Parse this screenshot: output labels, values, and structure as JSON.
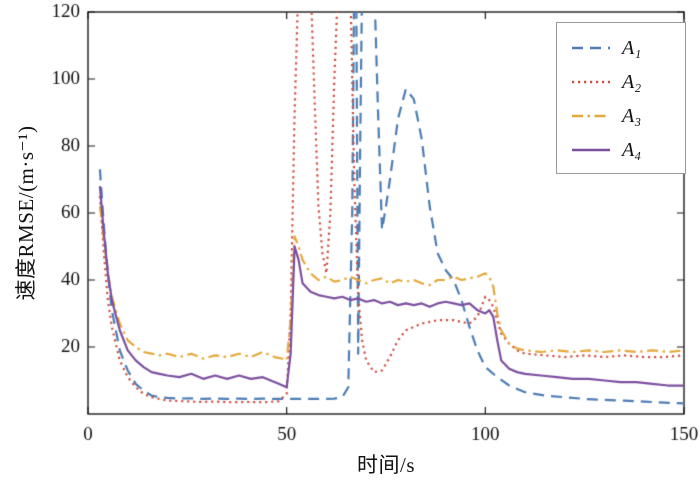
{
  "chart_data": {
    "type": "line",
    "title": "",
    "xlabel": "时间/s",
    "ylabel": "速度RMSE/(m·s⁻¹)",
    "xlim": [
      0,
      150
    ],
    "ylim": [
      0,
      120
    ],
    "xticks": [
      0,
      50,
      100,
      150
    ],
    "yticks": [
      20,
      40,
      60,
      80,
      100,
      120
    ],
    "grid": false,
    "legend_position": "top-right",
    "axis_color": "#1a1a1a",
    "series": [
      {
        "name": "A₁",
        "color": "#4d7db3",
        "style": "dashed",
        "x": [
          3,
          4,
          5,
          6,
          8,
          10,
          12,
          14,
          16,
          18,
          20,
          23,
          26,
          29,
          32,
          35,
          38,
          41,
          44,
          47,
          50,
          53,
          56,
          59,
          62,
          64,
          65.5,
          66.5,
          67,
          67.5,
          68,
          68.5,
          69,
          69.5,
          70,
          71,
          72,
          73,
          74,
          75,
          76,
          78,
          80,
          82,
          84,
          86,
          88,
          90,
          92,
          94,
          96,
          98,
          100,
          103,
          106,
          110,
          115,
          120,
          125,
          130,
          135,
          140,
          145,
          150
        ],
        "y": [
          73,
          56,
          42,
          31,
          19,
          13,
          9,
          7,
          5.5,
          5,
          4.8,
          4.6,
          4.7,
          4.5,
          4.6,
          4.5,
          4.6,
          4.5,
          4.6,
          4.5,
          4.5,
          4.5,
          4.5,
          4.5,
          4.6,
          5,
          8,
          60,
          130,
          130,
          18,
          80,
          130,
          130,
          130,
          130,
          130,
          90,
          55,
          62,
          70,
          88,
          97,
          94,
          82,
          62,
          48,
          43,
          40,
          34,
          26,
          19,
          14,
          11,
          8.5,
          6.5,
          5.5,
          5,
          4.5,
          4.2,
          4,
          3.7,
          3.4,
          3.2
        ]
      },
      {
        "name": "A₂",
        "color": "#cd5246",
        "style": "dotted",
        "x": [
          3,
          4,
          5,
          6,
          8,
          10,
          12,
          14,
          16,
          18,
          20,
          24,
          28,
          32,
          36,
          40,
          44,
          48,
          50,
          51,
          52,
          53,
          56,
          57,
          58,
          59,
          60,
          61,
          62,
          63,
          66,
          67,
          68,
          69,
          70,
          72,
          74,
          76,
          78,
          80,
          82,
          84,
          86,
          88,
          90,
          92,
          94,
          96,
          98,
          100,
          101,
          102,
          103,
          104,
          106,
          108,
          110,
          115,
          120,
          125,
          130,
          135,
          140,
          145,
          150
        ],
        "y": [
          65,
          48,
          34,
          26,
          16,
          11,
          8,
          6,
          5,
          4.5,
          4,
          3.8,
          3.6,
          3.7,
          3.5,
          3.6,
          3.5,
          3.8,
          6,
          30,
          90,
          130,
          130,
          95,
          62,
          48,
          42,
          60,
          100,
          130,
          130,
          70,
          35,
          22,
          16,
          12.5,
          13,
          17,
          22,
          25,
          26,
          27,
          27.5,
          28,
          28,
          28,
          27.5,
          27,
          29,
          35,
          34,
          32,
          28,
          24,
          21,
          19,
          18,
          17.5,
          17,
          17.5,
          17,
          17.5,
          17,
          17,
          17.5
        ]
      },
      {
        "name": "A₃",
        "color": "#e4a83c",
        "style": "dashdot",
        "x": [
          3,
          4,
          5,
          6,
          8,
          10,
          12,
          14,
          16,
          18,
          20,
          23,
          26,
          29,
          32,
          35,
          38,
          41,
          44,
          47,
          49,
          50,
          51,
          52,
          53,
          54,
          56,
          58,
          60,
          62,
          64,
          66,
          68,
          70,
          72,
          74,
          76,
          78,
          80,
          82,
          84,
          86,
          88,
          90,
          92,
          94,
          96,
          98,
          100,
          101,
          102,
          103,
          104,
          106,
          108,
          110,
          114,
          118,
          122,
          126,
          130,
          134,
          138,
          142,
          146,
          150
        ],
        "y": [
          62,
          52,
          42,
          35,
          27,
          22,
          20,
          18.5,
          18,
          17.5,
          18,
          17,
          18,
          16.5,
          17.5,
          17,
          18,
          17,
          18.5,
          17,
          16.5,
          16,
          28,
          53,
          50,
          46,
          42,
          40,
          41,
          39.5,
          40,
          41,
          40,
          39,
          40,
          40.5,
          39,
          40,
          39.5,
          40,
          39,
          38.5,
          40,
          40,
          41,
          40,
          40.5,
          41,
          42,
          41,
          38,
          30,
          25,
          21,
          19.5,
          19,
          18.5,
          19,
          18.5,
          19,
          18.5,
          19,
          18.5,
          19,
          18.5,
          19
        ]
      },
      {
        "name": "A₄",
        "color": "#7c4f9f",
        "style": "solid",
        "x": [
          3,
          4,
          5,
          6,
          8,
          10,
          12,
          14,
          16,
          18,
          20,
          23,
          26,
          29,
          32,
          35,
          38,
          41,
          44,
          46,
          48,
          50,
          51,
          52,
          53,
          54,
          56,
          58,
          60,
          62,
          64,
          66,
          68,
          70,
          72,
          74,
          76,
          78,
          80,
          82,
          84,
          86,
          88,
          90,
          92,
          94,
          96,
          98,
          100,
          101,
          102,
          103,
          104,
          106,
          108,
          110,
          114,
          118,
          122,
          126,
          130,
          134,
          138,
          142,
          146,
          150
        ],
        "y": [
          68,
          54,
          42,
          34,
          25,
          19,
          16,
          14,
          12.5,
          12,
          11.5,
          11,
          12,
          10.5,
          11.5,
          10.5,
          11.5,
          10.5,
          11,
          10,
          9,
          8,
          18,
          50,
          46,
          39,
          36.5,
          35.5,
          35,
          34.5,
          35,
          34,
          34.5,
          33.5,
          34,
          33,
          33.5,
          32.5,
          33,
          32.5,
          33,
          32,
          33,
          33.5,
          33,
          32.5,
          33,
          31,
          30,
          31,
          29,
          22,
          16,
          13.5,
          12.5,
          12,
          11.5,
          11,
          10.5,
          10.5,
          10,
          9.5,
          9.5,
          9,
          8.5,
          8.5
        ]
      }
    ]
  }
}
